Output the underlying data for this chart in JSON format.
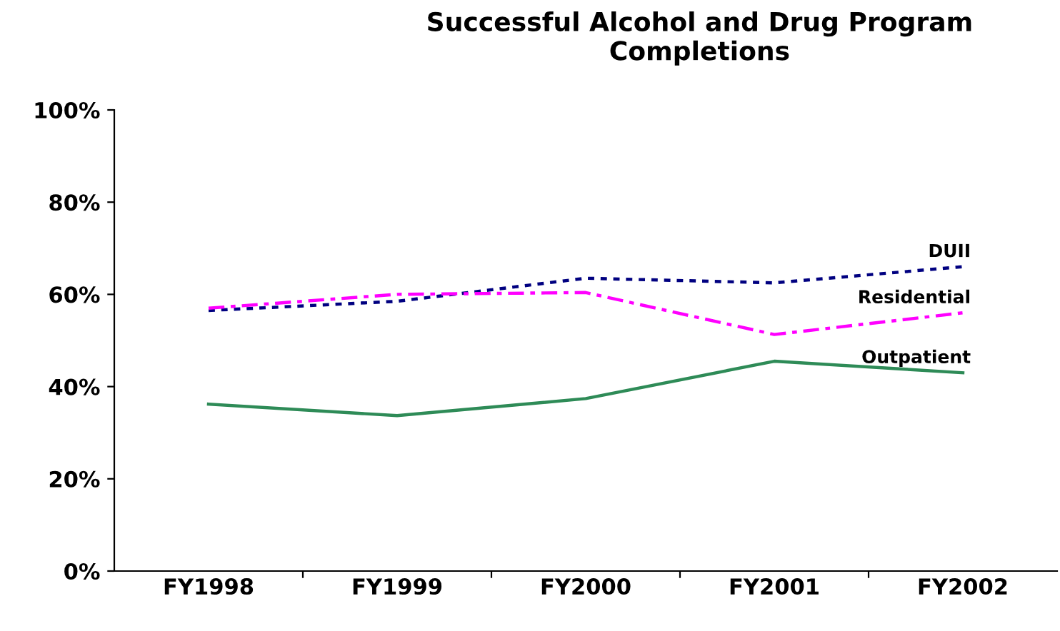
{
  "chart_data": {
    "type": "line",
    "title": "Successful Alcohol and Drug Program Completions",
    "categories": [
      "FY1998",
      "FY1999",
      "FY2000",
      "FY2001",
      "FY2002"
    ],
    "series": [
      {
        "name": "DUII",
        "color": "#000080",
        "line_style": "dotted",
        "values": [
          56.5,
          58.5,
          63.5,
          62.5,
          66
        ]
      },
      {
        "name": "Residential",
        "color": "#ff00ff",
        "line_style": "dashed",
        "values": [
          57,
          60,
          60.4,
          51.3,
          56
        ]
      },
      {
        "name": "Outpatient",
        "color": "#2e8b57",
        "line_style": "solid",
        "values": [
          36.2,
          33.7,
          37.4,
          45.5,
          43
        ]
      }
    ],
    "ylim": [
      0,
      100
    ],
    "yticks": [
      {
        "value": 0,
        "label": "0%"
      },
      {
        "value": 20,
        "label": "20%"
      },
      {
        "value": 40,
        "label": "40%"
      },
      {
        "value": 60,
        "label": "60%"
      },
      {
        "value": 80,
        "label": "80%"
      },
      {
        "value": 100,
        "label": "100%"
      }
    ],
    "grid": false,
    "legend": false
  }
}
